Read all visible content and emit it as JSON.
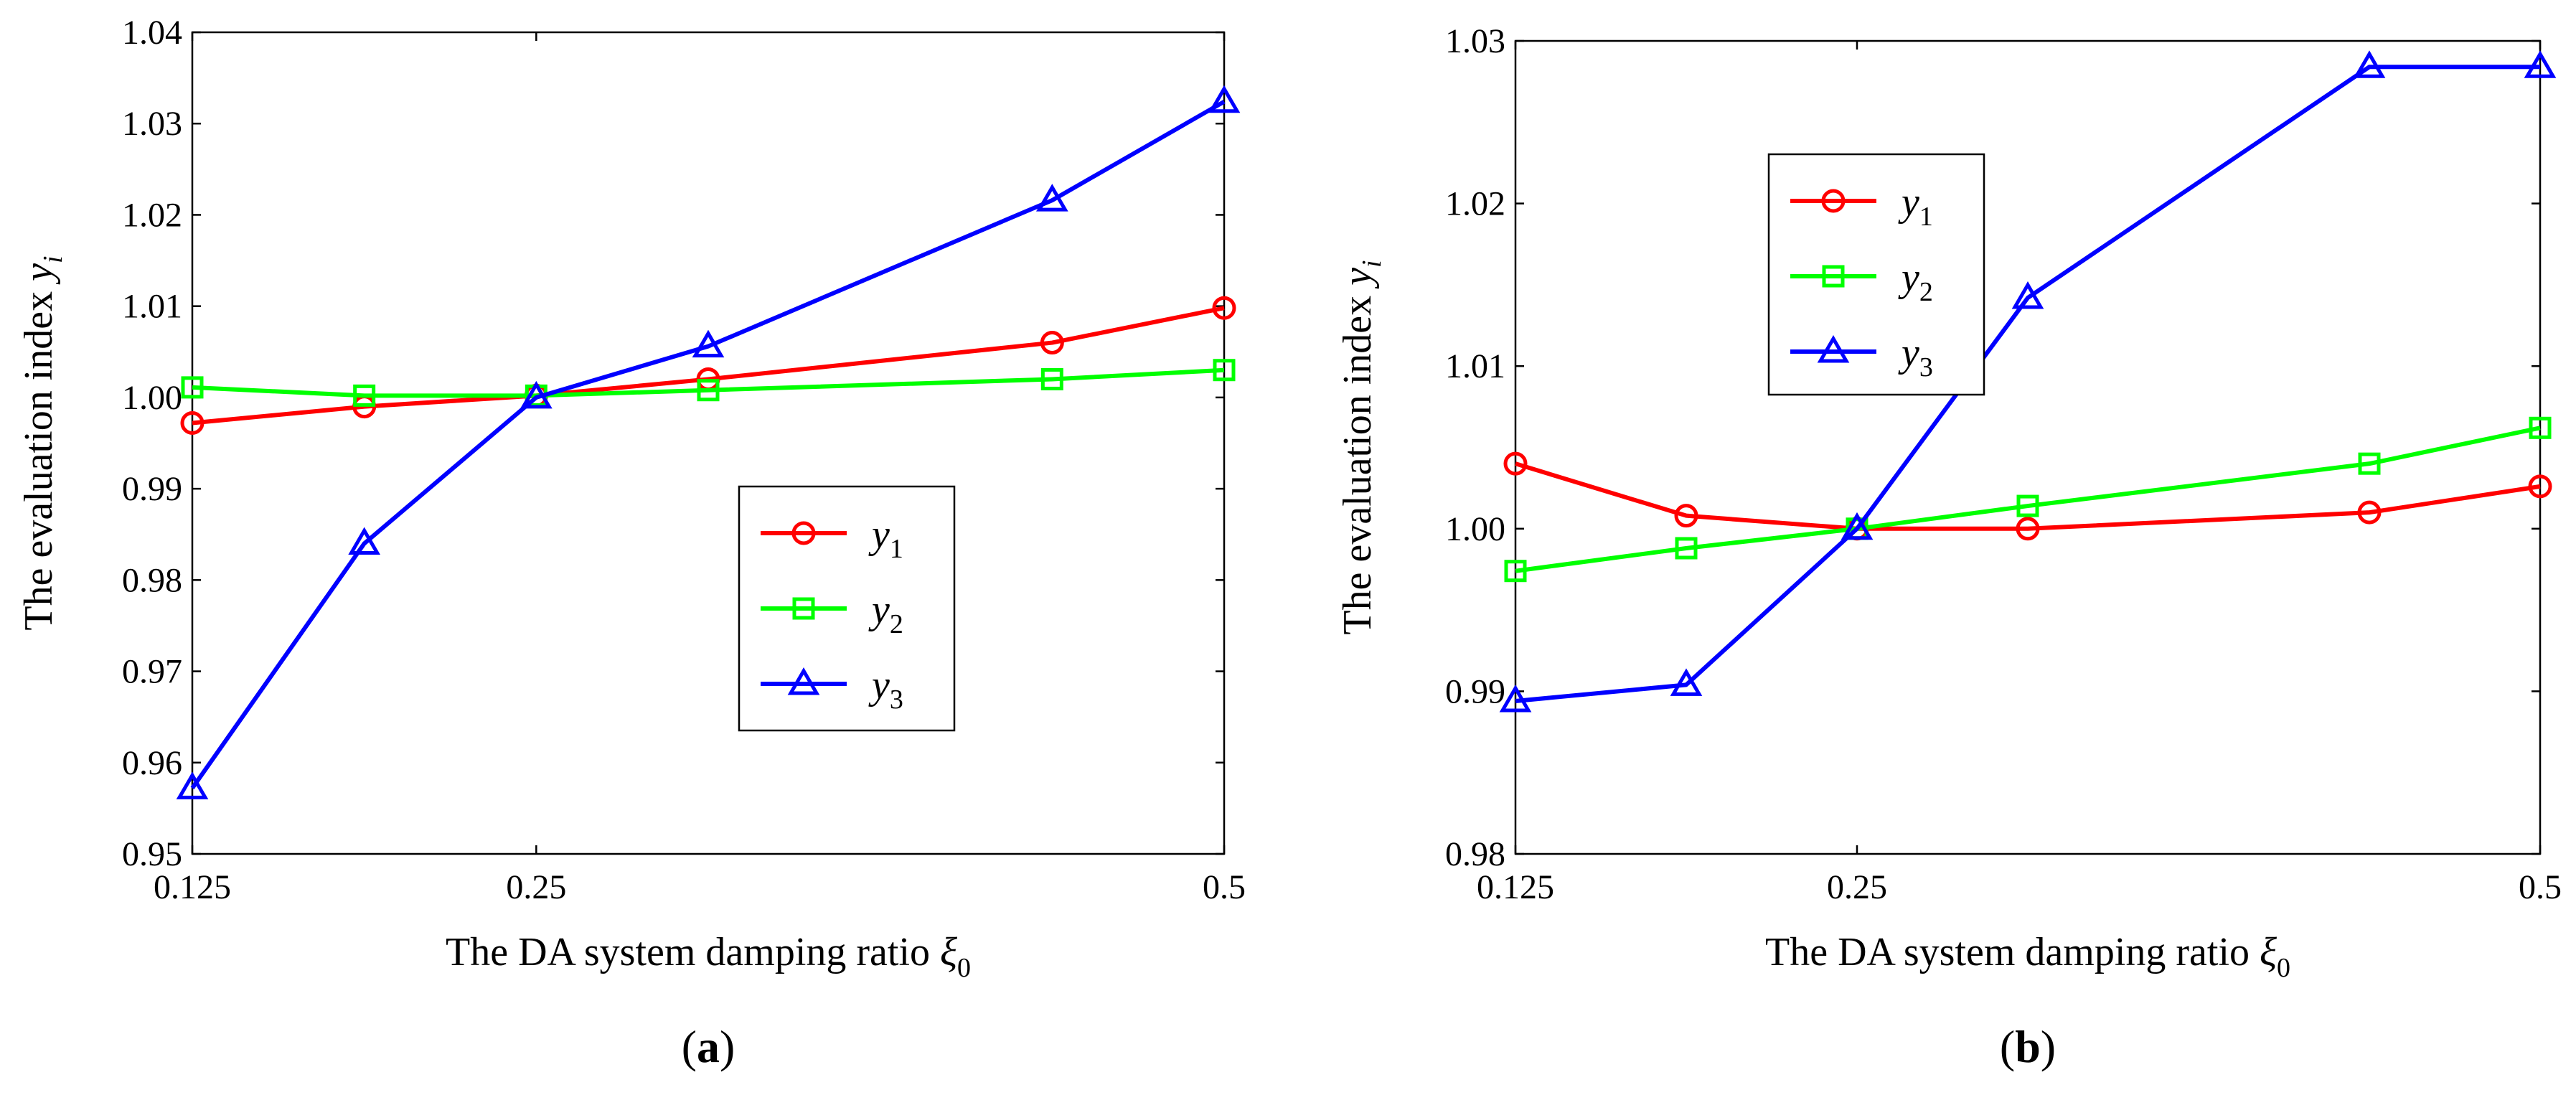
{
  "chart_data": [
    {
      "id": "a",
      "type": "line",
      "panel_label_open": "(",
      "panel_label_letter": "a",
      "panel_label_close": ")",
      "ylabel_text": "The evaluation index",
      "ylabel_sym": "y",
      "ylabel_sub": "i",
      "xlabel_text": "The DA system damping ratio",
      "xlabel_sym": "ξ",
      "xlabel_sub": "0",
      "ylim": [
        0.95,
        1.04
      ],
      "yticks": [
        0.95,
        0.96,
        0.97,
        0.98,
        0.99,
        1.0,
        1.01,
        1.02,
        1.03,
        1.04
      ],
      "ytick_labels": [
        "0.95",
        "0.96",
        "0.97",
        "0.98",
        "0.99",
        "1.00",
        "1.01",
        "1.02",
        "1.03",
        "1.04"
      ],
      "xticks": [
        0.125,
        0.25,
        0.5
      ],
      "xtick_labels": [
        "0.125",
        "0.25",
        "0.5"
      ],
      "legend_position": "center-right",
      "series": [
        {
          "name": "y1",
          "sym": "y",
          "sub": "1",
          "color": "#ff0000",
          "marker": "circle",
          "x": [
            0.125,
            0.1875,
            0.25,
            0.3125,
            0.4375,
            0.5
          ],
          "values": [
            0.9972,
            0.999,
            1.0002,
            1.002,
            1.006,
            1.0098
          ]
        },
        {
          "name": "y2",
          "sym": "y",
          "sub": "2",
          "color": "#00ff00",
          "marker": "square",
          "x": [
            0.125,
            0.1875,
            0.25,
            0.3125,
            0.4375,
            0.5
          ],
          "values": [
            1.0011,
            1.0002,
            1.0002,
            1.0008,
            1.002,
            1.003
          ]
        },
        {
          "name": "y3",
          "sym": "y",
          "sub": "3",
          "color": "#0000ff",
          "marker": "triangle",
          "x": [
            0.125,
            0.1875,
            0.25,
            0.3125,
            0.4375,
            0.5
          ],
          "values": [
            0.9572,
            0.984,
            1.0,
            1.0056,
            1.0216,
            1.0324
          ]
        }
      ]
    },
    {
      "id": "b",
      "type": "line",
      "panel_label_open": "(",
      "panel_label_letter": "b",
      "panel_label_close": ")",
      "ylabel_text": "The evaluation index",
      "ylabel_sym": "y",
      "ylabel_sub": "i",
      "xlabel_text": "The DA system damping ratio",
      "xlabel_sym": "ξ",
      "xlabel_sub": "0",
      "ylim": [
        0.98,
        1.03
      ],
      "yticks": [
        0.98,
        0.99,
        1.0,
        1.01,
        1.02,
        1.03
      ],
      "ytick_labels": [
        "0.98",
        "0.99",
        "1.00",
        "1.01",
        "1.02",
        "1.03"
      ],
      "xticks": [
        0.125,
        0.25,
        0.5
      ],
      "xtick_labels": [
        "0.125",
        "0.25",
        "0.5"
      ],
      "legend_position": "top-left",
      "series": [
        {
          "name": "y1",
          "sym": "y",
          "sub": "1",
          "color": "#ff0000",
          "marker": "circle",
          "x": [
            0.125,
            0.1875,
            0.25,
            0.3125,
            0.4375,
            0.5
          ],
          "values": [
            1.004,
            1.0008,
            1.0,
            1.0,
            1.001,
            1.0026
          ]
        },
        {
          "name": "y2",
          "sym": "y",
          "sub": "2",
          "color": "#00ff00",
          "marker": "square",
          "x": [
            0.125,
            0.1875,
            0.25,
            0.3125,
            0.4375,
            0.5
          ],
          "values": [
            0.9974,
            0.9988,
            1.0,
            1.0014,
            1.004,
            1.0062
          ]
        },
        {
          "name": "y3",
          "sym": "y",
          "sub": "3",
          "color": "#0000ff",
          "marker": "triangle",
          "x": [
            0.125,
            0.1875,
            0.25,
            0.3125,
            0.4375,
            0.5
          ],
          "values": [
            0.9894,
            0.9904,
            1.0,
            1.0142,
            1.0284,
            1.0284
          ]
        }
      ]
    }
  ]
}
